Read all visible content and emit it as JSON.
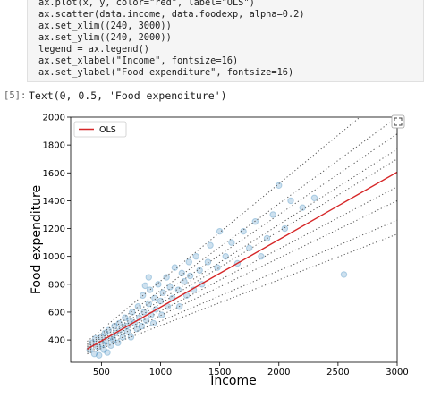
{
  "notebook": {
    "code_lines": [
      "ax.plot(x, y, color=\"red\", label=\"OLS\")",
      "ax.scatter(data.income, data.foodexp, alpha=0.2)",
      "ax.set_xlim((240, 3000))",
      "ax.set_ylim((240, 2000))",
      "legend = ax.legend()",
      "ax.set_xlabel(\"Income\", fontsize=16)",
      "ax.set_ylabel(\"Food expenditure\", fontsize=16)"
    ],
    "prompt": "[5]:",
    "output": "Text(0, 0.5, 'Food expenditure')"
  },
  "chart_data": {
    "type": "scatter",
    "xlabel": "Income",
    "ylabel": "Food expenditure",
    "xlim": [
      240,
      3000
    ],
    "ylim": [
      240,
      2000
    ],
    "xticks": [
      500,
      1000,
      1500,
      2000,
      2500,
      3000
    ],
    "yticks": [
      400,
      600,
      800,
      1000,
      1200,
      1400,
      1600,
      1800,
      2000
    ],
    "points": {
      "color": "#1f77b4",
      "x": [
        400,
        420,
        440,
        450,
        470,
        480,
        500,
        510,
        520,
        530,
        540,
        550,
        560,
        580,
        590,
        600,
        610,
        620,
        640,
        650,
        660,
        680,
        700,
        710,
        720,
        740,
        750,
        760,
        780,
        800,
        810,
        820,
        840,
        850,
        860,
        880,
        900,
        910,
        920,
        940,
        950,
        960,
        980,
        1000,
        1010,
        1020,
        1050,
        1060,
        1080,
        1100,
        1120,
        1150,
        1160,
        1180,
        1200,
        1220,
        1240,
        1250,
        1280,
        1300,
        1330,
        1350,
        1400,
        1420,
        1480,
        1500,
        1550,
        1600,
        1650,
        1700,
        1750,
        1800,
        1850,
        1900,
        1950,
        2000,
        2050,
        2100,
        2200,
        2300,
        2550,
        870,
        900
      ],
      "values": [
        330,
        380,
        300,
        410,
        350,
        290,
        420,
        370,
        330,
        450,
        390,
        310,
        470,
        360,
        420,
        400,
        500,
        450,
        380,
        520,
        470,
        420,
        560,
        500,
        460,
        540,
        420,
        600,
        520,
        480,
        640,
        560,
        500,
        720,
        600,
        540,
        660,
        760,
        580,
        520,
        700,
        620,
        800,
        680,
        580,
        740,
        850,
        640,
        780,
        700,
        920,
        760,
        640,
        880,
        820,
        720,
        960,
        860,
        760,
        1000,
        900,
        800,
        960,
        1080,
        920,
        1180,
        1000,
        1100,
        950,
        1180,
        1060,
        1250,
        1000,
        1130,
        1300,
        1510,
        1200,
        1400,
        1350,
        1420,
        870,
        790,
        850
      ]
    },
    "quantile_lines": [
      {
        "x": [
          380,
          3000
        ],
        "values": [
          300,
          1160
        ]
      },
      {
        "x": [
          380,
          3000
        ],
        "values": [
          310,
          1260
        ]
      },
      {
        "x": [
          380,
          3000
        ],
        "values": [
          320,
          1400
        ]
      },
      {
        "x": [
          380,
          3000
        ],
        "values": [
          330,
          1500
        ]
      },
      {
        "x": [
          380,
          3000
        ],
        "values": [
          340,
          1700
        ]
      },
      {
        "x": [
          380,
          3000
        ],
        "values": [
          350,
          1770
        ]
      },
      {
        "x": [
          380,
          3000
        ],
        "values": [
          360,
          1880
        ]
      },
      {
        "x": [
          380,
          3000
        ],
        "values": [
          370,
          2000
        ]
      },
      {
        "x": [
          380,
          3000
        ],
        "values": [
          390,
          2220
        ]
      }
    ],
    "series": [
      {
        "name": "OLS",
        "color": "#d62728",
        "x": [
          380,
          3000
        ],
        "values": [
          335,
          1605
        ]
      }
    ],
    "legend": "upper left"
  }
}
